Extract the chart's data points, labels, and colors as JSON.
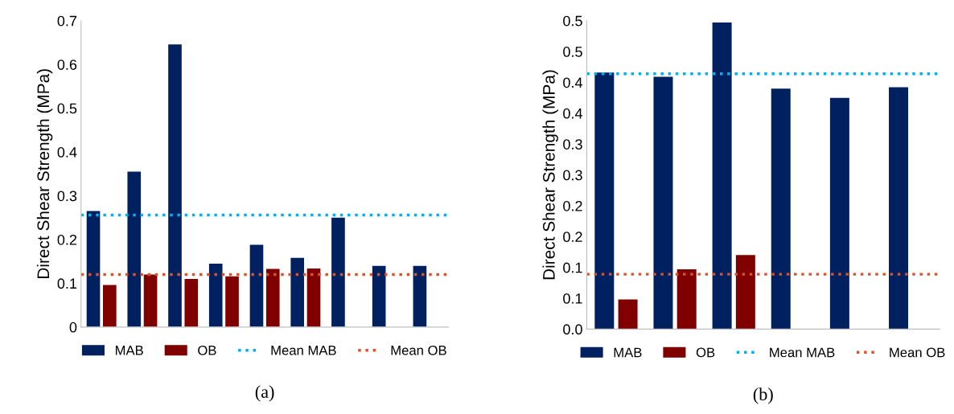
{
  "chart_data": [
    {
      "type": "bar",
      "ylabel": "Direct Shear Strength (MPa)",
      "categories": [
        null,
        null,
        null,
        null,
        null,
        null,
        null,
        null,
        null
      ],
      "series": [
        {
          "name": "MAB",
          "color": "#002060",
          "values": [
            0.265,
            0.355,
            0.646,
            0.145,
            0.188,
            0.158,
            0.25,
            0.14,
            0.14
          ]
        },
        {
          "name": "OB",
          "color": "#800000",
          "values": [
            0.096,
            0.12,
            0.11,
            0.116,
            0.133,
            0.134,
            null,
            null,
            null
          ]
        }
      ],
      "ref_lines": [
        {
          "axis": "y",
          "value": 0.256,
          "label": "Mean MAB",
          "color": "#00b0f0",
          "line_style": "dotted"
        },
        {
          "axis": "y",
          "value": 0.12,
          "label": "Mean OB",
          "color": "#d9532b",
          "line_style": "dotted"
        }
      ],
      "ylim": [
        0,
        0.7
      ],
      "yticks": [
        0,
        0.1,
        0.2,
        0.3,
        0.4,
        0.5,
        0.6,
        0.7
      ],
      "grid": false,
      "legend": "bottom",
      "annotations": [
        "(a)"
      ]
    },
    {
      "type": "bar",
      "ylabel": "Direct Shear Strength (MPa)",
      "categories": [
        null,
        null,
        null,
        null,
        null,
        null
      ],
      "series": [
        {
          "name": "MAB",
          "color": "#002060",
          "values": [
            0.416,
            0.409,
            0.497,
            0.39,
            0.375,
            0.392
          ]
        },
        {
          "name": "OB",
          "color": "#800000",
          "values": [
            0.048,
            0.097,
            0.12,
            null,
            null,
            null
          ]
        }
      ],
      "ref_lines": [
        {
          "axis": "y",
          "value": 0.414,
          "label": "Mean MAB",
          "color": "#00b0f0",
          "line_style": "dotted"
        },
        {
          "axis": "y",
          "value": 0.089,
          "label": "Mean OB",
          "color": "#d9532b",
          "line_style": "dotted"
        }
      ],
      "ylim": [
        0,
        0.5
      ],
      "yticks": [
        {
          "value": 0,
          "label": "0.0"
        },
        {
          "value": 0.05,
          "label": "0.1"
        },
        {
          "value": 0.1,
          "label": "0.1"
        },
        {
          "value": 0.15,
          "label": "0.2"
        },
        {
          "value": 0.2,
          "label": "0.2"
        },
        {
          "value": 0.25,
          "label": "0.3"
        },
        {
          "value": 0.3,
          "label": "0.3"
        },
        {
          "value": 0.35,
          "label": "0.4"
        },
        {
          "value": 0.4,
          "label": "0.4"
        },
        {
          "value": 0.45,
          "label": "0.5"
        },
        {
          "value": 0.5,
          "label": "0.5"
        }
      ],
      "grid": false,
      "legend": "bottom",
      "annotations": [
        "(b)"
      ]
    }
  ]
}
